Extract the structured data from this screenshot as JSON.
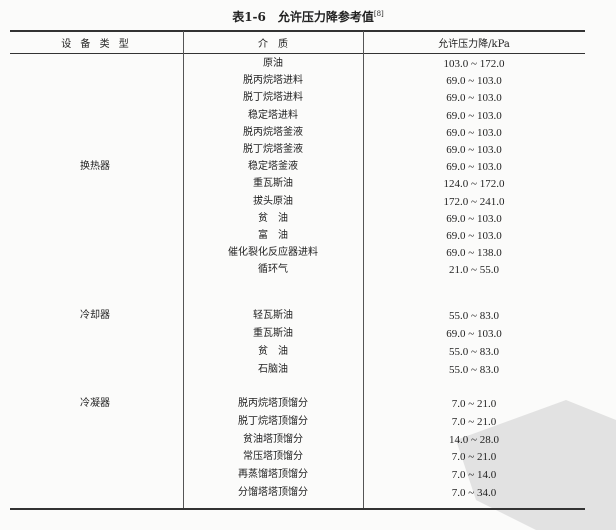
{
  "title": "表1-6　允许压力降参考值",
  "title_ref": "[8]",
  "headers": {
    "type": "设 备 类 型",
    "medium": "介　质",
    "pressure": "允许压力降/kPa"
  },
  "groups": [
    {
      "type": "换热器",
      "rows": [
        {
          "medium": "原油",
          "value": "103.0 ~ 172.0"
        },
        {
          "medium": "脱丙烷塔进料",
          "value": "69.0 ~ 103.0"
        },
        {
          "medium": "脱丁烷塔进料",
          "value": "69.0 ~ 103.0"
        },
        {
          "medium": "稳定塔进料",
          "value": "69.0 ~ 103.0"
        },
        {
          "medium": "脱丙烷塔釜液",
          "value": "69.0 ~ 103.0"
        },
        {
          "medium": "脱丁烷塔釜液",
          "value": "69.0 ~ 103.0"
        },
        {
          "medium": "稳定塔釜液",
          "value": "69.0 ~ 103.0"
        },
        {
          "medium": "重瓦斯油",
          "value": "124.0 ~ 172.0"
        },
        {
          "medium": "拔头原油",
          "value": "172.0 ~ 241.0"
        },
        {
          "medium": "贫　油",
          "value": "69.0 ~ 103.0"
        },
        {
          "medium": "富　油",
          "value": "69.0 ~ 103.0"
        },
        {
          "medium": "催化裂化反应器进料",
          "value": "69.0 ~ 138.0"
        },
        {
          "medium": "循环气",
          "value": "21.0 ~ 55.0"
        }
      ]
    },
    {
      "type": "冷却器",
      "rows": [
        {
          "medium": "轻瓦斯油",
          "value": "55.0 ~ 83.0"
        },
        {
          "medium": "重瓦斯油",
          "value": "69.0 ~ 103.0"
        },
        {
          "medium": "贫　油",
          "value": "55.0 ~ 83.0"
        },
        {
          "medium": "石脑油",
          "value": "55.0 ~ 83.0"
        }
      ]
    },
    {
      "type": "冷凝器",
      "rows": [
        {
          "medium": "脱丙烷塔顶馏分",
          "value": "7.0 ~ 21.0"
        },
        {
          "medium": "脱丁烷塔顶馏分",
          "value": "7.0 ~ 21.0"
        },
        {
          "medium": "贫油塔顶馏分",
          "value": "14.0 ~ 28.0"
        },
        {
          "medium": "常压塔顶馏分",
          "value": "7.0 ~ 21.0"
        },
        {
          "medium": "再蒸馏塔顶馏分",
          "value": "7.0 ~ 14.0"
        },
        {
          "medium": "分馏塔塔顶馏分",
          "value": "7.0 ~ 34.0"
        }
      ]
    }
  ],
  "watermark": "watermark-stamp"
}
